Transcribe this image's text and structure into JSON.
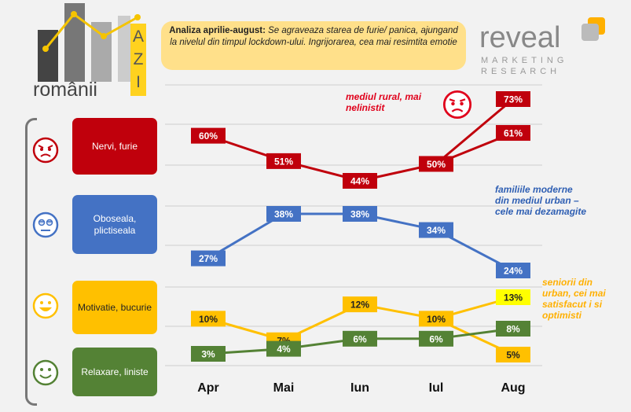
{
  "header": {
    "logo_word": "românii",
    "logo_side": [
      "A",
      "Z",
      "I"
    ],
    "title_bold": "Analiza aprilie-august:",
    "title_italic": "Se agraveaza starea de furie/ panica, ajungand la nivelul din timpul lockdown-ului. Ingrijorarea, cea mai resimtita emotie",
    "brand_name": "reveal",
    "brand_sub_1": "MARKETING",
    "brand_sub_2": "RESEARCH"
  },
  "categories": [
    {
      "label": "Nervi, furie",
      "color": "#c0000c",
      "face": "angry-face"
    },
    {
      "label": "Oboseala, plictiseala",
      "color": "#4472c4",
      "face": "tired-face"
    },
    {
      "label": "Motivatie, bucurie",
      "color": "#ffc000",
      "face": "smile-face"
    },
    {
      "label": "Relaxare, liniste",
      "color": "#548235",
      "face": "calm-face"
    }
  ],
  "notes": {
    "rural": "mediul rural, mai nelinistit",
    "urban": "familiile moderne din mediul urban – cele mai dezamagite",
    "seniors": "seniorii din urban, cei mai satisfacut i si optimisti"
  },
  "chart_data": {
    "type": "line",
    "categories": [
      "Apr",
      "Mai",
      "Iun",
      "Iul",
      "Aug"
    ],
    "series": [
      {
        "name": "Nervi, furie",
        "color": "#c0000c",
        "values": [
          60,
          51,
          44,
          50,
          61
        ],
        "labels": [
          "60%",
          "51%",
          "44%",
          "50%",
          "61%"
        ],
        "extra": {
          "x": "Aug",
          "value": 73,
          "label": "73%"
        }
      },
      {
        "name": "Oboseala, plictiseala",
        "color": "#4472c4",
        "values": [
          27,
          38,
          38,
          34,
          24
        ],
        "labels": [
          "27%",
          "38%",
          "38%",
          "34%",
          "24%"
        ]
      },
      {
        "name": "Motivatie, bucurie",
        "color": "#ffc000",
        "values": [
          10,
          7,
          12,
          10,
          5
        ],
        "labels": [
          "10%",
          "7%",
          "12%",
          "10%",
          "5%"
        ],
        "extra": {
          "x": "Aug",
          "value": 13,
          "label": "13%"
        }
      },
      {
        "name": "Relaxare, liniste",
        "color": "#548235",
        "values": [
          3,
          4,
          6,
          6,
          8
        ],
        "labels": [
          "3%",
          "4%",
          "6%",
          "6%",
          "8%"
        ]
      }
    ],
    "grid": true
  }
}
